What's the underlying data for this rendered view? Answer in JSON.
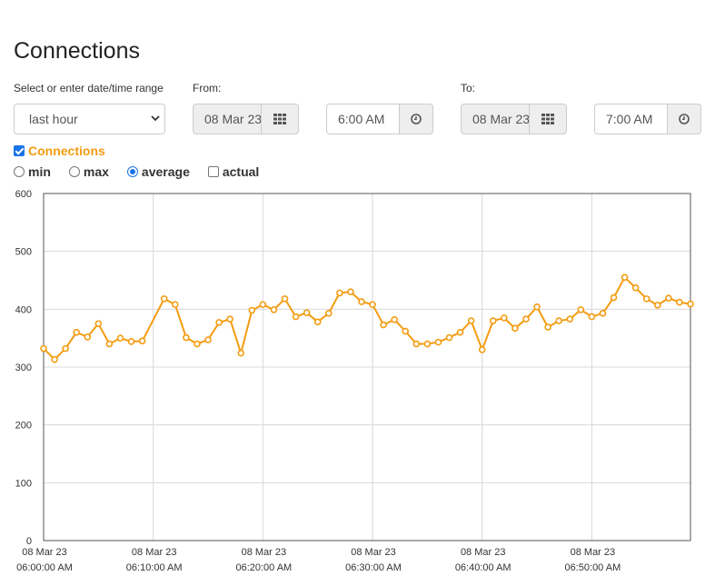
{
  "page": {
    "title": "Connections"
  },
  "range": {
    "label": "Select or enter date/time range",
    "selected": "last hour"
  },
  "from": {
    "label": "From:",
    "date": "08 Mar 23",
    "time": "6:00 AM"
  },
  "to": {
    "label": "To:",
    "date": "08 Mar 23",
    "time": "7:00 AM"
  },
  "icons": {
    "calendar": "calendar-grid-icon",
    "clock": "clock-icon",
    "dropdown": "chevron-down-icon"
  },
  "series_toggle": {
    "label": "Connections",
    "checked": true,
    "color": "#f39c12"
  },
  "modes": [
    {
      "label": "min",
      "selected": false
    },
    {
      "label": "max",
      "selected": false
    },
    {
      "label": "average",
      "selected": true
    }
  ],
  "actual": {
    "label": "actual",
    "checked": false
  },
  "chart_data": {
    "type": "line",
    "color": "#f39c12",
    "grid": true,
    "ylim": [
      0,
      600
    ],
    "yticks": [
      0,
      100,
      200,
      300,
      400,
      500,
      600
    ],
    "xlim_minutes": [
      0,
      59
    ],
    "xticks": [
      {
        "date": "08 Mar 23",
        "time": "06:00:00 AM"
      },
      {
        "date": "08 Mar 23",
        "time": "06:10:00 AM"
      },
      {
        "date": "08 Mar 23",
        "time": "06:20:00 AM"
      },
      {
        "date": "08 Mar 23",
        "time": "06:30:00 AM"
      },
      {
        "date": "08 Mar 23",
        "time": "06:40:00 AM"
      },
      {
        "date": "08 Mar 23",
        "time": "06:50:00 AM"
      }
    ],
    "series": [
      {
        "x": [
          0,
          1,
          2,
          3,
          4,
          5,
          6,
          7,
          8,
          9,
          11,
          12,
          13,
          14,
          15,
          16,
          17,
          18,
          19,
          20,
          21,
          22,
          23,
          24,
          25,
          26,
          27,
          28,
          29,
          30,
          31,
          32,
          33,
          34,
          35,
          36,
          37,
          38,
          39,
          40,
          41,
          42,
          43,
          44,
          45,
          46,
          47,
          48,
          49,
          50,
          51,
          52,
          53,
          54,
          55,
          56,
          57,
          58,
          59
        ],
        "values": [
          332,
          313,
          332,
          360,
          352,
          375,
          340,
          350,
          344,
          345,
          418,
          408,
          351,
          340,
          347,
          377,
          383,
          324,
          398,
          408,
          399,
          418,
          387,
          394,
          378,
          393,
          428,
          430,
          413,
          408,
          373,
          382,
          362,
          340,
          340,
          343,
          351,
          360,
          380,
          330,
          380,
          385,
          367,
          383,
          404,
          369,
          380,
          383,
          399,
          387,
          393,
          420,
          455,
          437,
          418,
          407,
          419,
          412,
          409
        ]
      }
    ]
  }
}
